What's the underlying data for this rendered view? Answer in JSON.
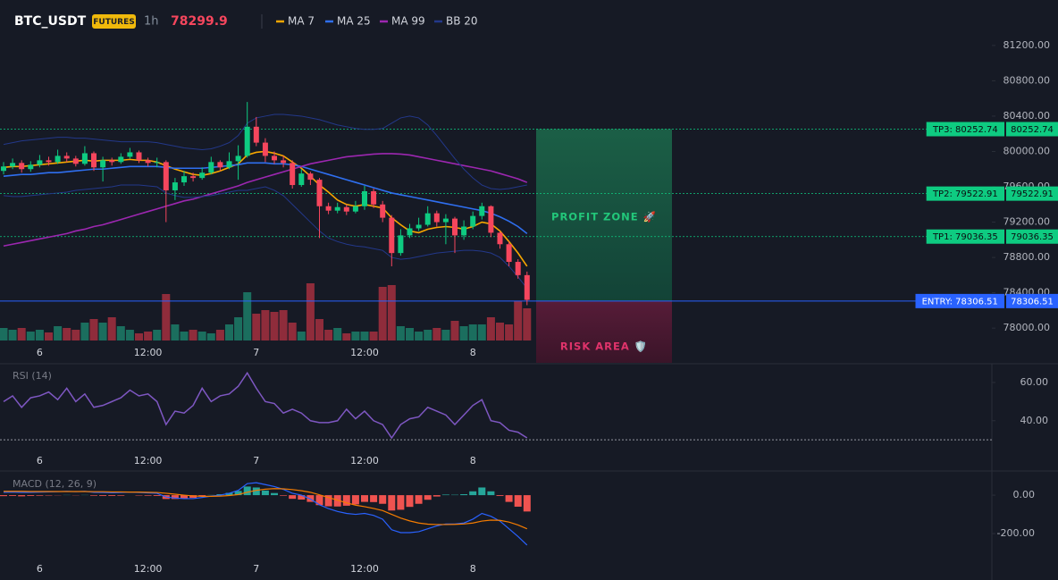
{
  "header": {
    "symbol": "BTC_USDT",
    "badge": "FUTURES",
    "interval": "1h",
    "last_price": 78299.9
  },
  "chart_data": [
    {
      "type": "candlestick",
      "categories": [
        null,
        null,
        null,
        null,
        "6",
        null,
        null,
        null,
        null,
        null,
        null,
        null,
        null,
        null,
        null,
        null,
        "12:00",
        null,
        null,
        null,
        null,
        null,
        null,
        null,
        null,
        null,
        null,
        null,
        "7",
        null,
        null,
        null,
        null,
        null,
        null,
        null,
        null,
        null,
        null,
        null,
        "12:00",
        null,
        null,
        null,
        null,
        null,
        null,
        null,
        null,
        null,
        null,
        null,
        "8",
        null,
        null,
        null,
        null,
        null,
        null
      ],
      "open": [
        79780,
        79830,
        79870,
        79800,
        79850,
        79900,
        79880,
        79950,
        79920,
        79860,
        79980,
        79820,
        79900,
        79880,
        79940,
        79990,
        79900,
        79870,
        79880,
        79560,
        79650,
        79720,
        79700,
        79760,
        79880,
        79820,
        79890,
        79950,
        80280,
        80100,
        79950,
        79900,
        79870,
        79620,
        79750,
        79680,
        79380,
        79330,
        79370,
        79320,
        79380,
        79550,
        79400,
        79250,
        78850,
        79050,
        79130,
        79170,
        79300,
        79200,
        79240,
        79050,
        79150,
        79270,
        79380,
        79080,
        78950,
        78750,
        78600
      ],
      "high": [
        79880,
        79920,
        79900,
        79890,
        79960,
        79940,
        80020,
        79990,
        79950,
        80060,
        80000,
        79940,
        79930,
        79980,
        80040,
        80010,
        79930,
        79930,
        79900,
        79700,
        79780,
        79760,
        79820,
        79940,
        79900,
        79990,
        80070,
        80560,
        80390,
        80150,
        80000,
        79950,
        79900,
        79800,
        79770,
        79700,
        79420,
        79420,
        79400,
        79440,
        79610,
        79580,
        79440,
        79280,
        79120,
        79180,
        79250,
        79380,
        79330,
        79290,
        79260,
        79220,
        79320,
        79420,
        79390,
        79100,
        78980,
        78780,
        78640
      ],
      "low": [
        79740,
        79800,
        79760,
        79770,
        79820,
        79840,
        79860,
        79880,
        79830,
        79840,
        79780,
        79660,
        79840,
        79860,
        79920,
        79870,
        79830,
        79820,
        79200,
        79450,
        79610,
        79660,
        79680,
        79740,
        79780,
        79800,
        79680,
        79930,
        80060,
        79880,
        79860,
        79820,
        79580,
        79600,
        79620,
        79020,
        79290,
        79300,
        79280,
        79300,
        79340,
        79360,
        79200,
        78700,
        78820,
        79020,
        79100,
        79150,
        79150,
        78950,
        78850,
        79000,
        79120,
        79230,
        79030,
        78900,
        78700,
        78560,
        78260
      ],
      "close": [
        79830,
        79870,
        79800,
        79850,
        79900,
        79880,
        79950,
        79920,
        79860,
        79980,
        79820,
        79900,
        79880,
        79940,
        79990,
        79900,
        79870,
        79880,
        79560,
        79650,
        79720,
        79700,
        79760,
        79880,
        79820,
        79890,
        79950,
        80280,
        80100,
        79950,
        79900,
        79870,
        79620,
        79750,
        79680,
        79380,
        79330,
        79370,
        79320,
        79380,
        79550,
        79400,
        79250,
        78850,
        79050,
        79130,
        79170,
        79300,
        79200,
        79240,
        79050,
        79150,
        79270,
        79380,
        79080,
        78950,
        78750,
        78600,
        78320
      ],
      "volume": [
        14,
        12,
        14,
        10,
        12,
        9,
        16,
        14,
        12,
        20,
        24,
        20,
        26,
        16,
        12,
        8,
        10,
        12,
        52,
        18,
        10,
        12,
        10,
        8,
        12,
        18,
        26,
        54,
        30,
        34,
        32,
        34,
        20,
        10,
        64,
        24,
        12,
        14,
        8,
        10,
        10,
        10,
        60,
        62,
        16,
        14,
        10,
        12,
        14,
        12,
        22,
        16,
        18,
        18,
        26,
        20,
        18,
        44,
        36
      ],
      "up_color": "#0ecb81",
      "down_color": "#f6465d",
      "volume_up_color": "#1b6e5e",
      "volume_down_color": "#8f2c3b",
      "series": [
        {
          "name": "MA 7",
          "color": "#f7a600",
          "values": [
            79820,
            79830,
            79830,
            79840,
            79850,
            79860,
            79870,
            79880,
            79890,
            79900,
            79890,
            79900,
            79900,
            79900,
            79910,
            79900,
            79900,
            79880,
            79840,
            79800,
            79770,
            79740,
            79730,
            79750,
            79780,
            79820,
            79860,
            79960,
            79990,
            80000,
            79980,
            79950,
            79880,
            79810,
            79720,
            79620,
            79540,
            79450,
            79400,
            79380,
            79400,
            79380,
            79360,
            79250,
            79170,
            79100,
            79080,
            79120,
            79140,
            79150,
            79140,
            79120,
            79150,
            79200,
            79180,
            79100,
            78980,
            78850,
            78700
          ]
        },
        {
          "name": "MA 25",
          "color": "#2f6ff0",
          "values": [
            79720,
            79730,
            79740,
            79740,
            79750,
            79760,
            79760,
            79770,
            79780,
            79790,
            79800,
            79800,
            79810,
            79820,
            79830,
            79830,
            79830,
            79830,
            79820,
            79810,
            79810,
            79810,
            79810,
            79820,
            79830,
            79840,
            79850,
            79870,
            79870,
            79870,
            79860,
            79860,
            79850,
            79830,
            79800,
            79770,
            79740,
            79710,
            79680,
            79650,
            79620,
            79590,
            79560,
            79530,
            79510,
            79490,
            79470,
            79450,
            79430,
            79410,
            79390,
            79370,
            79350,
            79330,
            79300,
            79260,
            79210,
            79150,
            79070
          ]
        },
        {
          "name": "MA 99",
          "color": "#9c27b0",
          "values": [
            78930,
            78950,
            78970,
            78990,
            79010,
            79030,
            79050,
            79070,
            79100,
            79120,
            79150,
            79170,
            79200,
            79230,
            79260,
            79290,
            79320,
            79350,
            79380,
            79410,
            79440,
            79460,
            79490,
            79520,
            79550,
            79580,
            79610,
            79650,
            79680,
            79710,
            79740,
            79770,
            79800,
            79830,
            79860,
            79880,
            79900,
            79920,
            79940,
            79950,
            79960,
            79970,
            79975,
            79975,
            79970,
            79960,
            79940,
            79920,
            79900,
            79880,
            79860,
            79840,
            79820,
            79800,
            79780,
            79750,
            79720,
            79690,
            79650
          ]
        },
        {
          "name": "BB 20",
          "color": "#23388a",
          "upper": [
            80080,
            80100,
            80120,
            80130,
            80140,
            80150,
            80160,
            80160,
            80150,
            80150,
            80140,
            80130,
            80120,
            80110,
            80110,
            80110,
            80110,
            80100,
            80080,
            80060,
            80040,
            80030,
            80020,
            80030,
            80060,
            80100,
            80180,
            80320,
            80380,
            80400,
            80420,
            80420,
            80410,
            80400,
            80380,
            80360,
            80330,
            80300,
            80280,
            80260,
            80250,
            80250,
            80260,
            80320,
            80380,
            80400,
            80380,
            80300,
            80180,
            80050,
            79920,
            79800,
            79700,
            79620,
            79580,
            79570,
            79580,
            79600,
            79620
          ],
          "lower": [
            79500,
            79490,
            79490,
            79500,
            79510,
            79520,
            79530,
            79540,
            79560,
            79570,
            79580,
            79590,
            79600,
            79620,
            79620,
            79620,
            79610,
            79600,
            79530,
            79500,
            79480,
            79480,
            79490,
            79500,
            79520,
            79540,
            79560,
            79560,
            79580,
            79600,
            79560,
            79500,
            79400,
            79300,
            79200,
            79100,
            79020,
            78980,
            78950,
            78930,
            78920,
            78900,
            78880,
            78800,
            78780,
            78790,
            78810,
            78830,
            78850,
            78860,
            78870,
            78880,
            78880,
            78870,
            78850,
            78800,
            78700,
            78580,
            78450
          ]
        }
      ],
      "ylim": [
        77860,
        81310
      ],
      "yticks": [
        {
          "value": 81200,
          "label": "81200.00"
        },
        {
          "value": 80800,
          "label": "80800.00"
        },
        {
          "value": 80400,
          "label": "80400.00"
        },
        {
          "value": 80000,
          "label": "80000.00"
        },
        {
          "value": 79600,
          "label": "79600.00"
        },
        {
          "value": 79200,
          "label": "79200.00"
        },
        {
          "value": 78800,
          "label": "78800.00"
        },
        {
          "value": 78400,
          "label": "78400.00"
        },
        {
          "value": 78000,
          "label": "78000.00"
        }
      ],
      "levels": [
        {
          "label": "TP3: 80252.74",
          "value": 80252.74,
          "color": "#0ecb81"
        },
        {
          "label": "TP2: 79522.91",
          "value": 79522.91,
          "color": "#0ecb81"
        },
        {
          "label": "TP1: 79036.35",
          "value": 79036.35,
          "color": "#0ecb81"
        },
        {
          "label": "ENTRY: 78306.51",
          "value": 78306.51,
          "color": "#2962ff"
        }
      ],
      "profit_zone": "PROFIT ZONE 🚀",
      "risk_zone": "RISK AREA 🛡️"
    },
    {
      "type": "line",
      "title": "RSI (14)",
      "color": "#7e57c2",
      "categories": [
        null,
        null,
        null,
        null,
        "6",
        null,
        null,
        null,
        null,
        null,
        null,
        null,
        null,
        null,
        null,
        null,
        "12:00",
        null,
        null,
        null,
        null,
        null,
        null,
        null,
        null,
        null,
        null,
        null,
        "7",
        null,
        null,
        null,
        null,
        null,
        null,
        null,
        null,
        null,
        null,
        null,
        "12:00",
        null,
        null,
        null,
        null,
        null,
        null,
        null,
        null,
        null,
        null,
        null,
        "8",
        null,
        null,
        null,
        null,
        null,
        null
      ],
      "values": [
        50,
        53,
        47,
        52,
        53,
        55,
        51,
        57,
        50,
        54,
        47,
        48,
        50,
        52,
        56,
        53,
        54,
        50,
        38,
        45,
        44,
        48,
        57,
        50,
        53,
        54,
        58,
        65,
        57,
        50,
        49,
        44,
        46,
        44,
        40,
        39,
        39,
        40,
        46,
        41,
        45,
        40,
        38,
        31,
        38,
        41,
        42,
        47,
        45,
        43,
        38,
        43,
        48,
        51,
        40,
        39,
        35,
        34,
        31
      ],
      "reference_line": 30,
      "ylim": [
        24,
        67
      ],
      "yticks": [
        {
          "value": 60,
          "label": "60.00"
        },
        {
          "value": 40,
          "label": "40.00"
        }
      ]
    },
    {
      "type": "macd",
      "title": "MACD (12, 26, 9)",
      "categories": [
        null,
        null,
        null,
        null,
        "6",
        null,
        null,
        null,
        null,
        null,
        null,
        null,
        null,
        null,
        null,
        null,
        "12:00",
        null,
        null,
        null,
        null,
        null,
        null,
        null,
        null,
        null,
        null,
        null,
        "7",
        null,
        null,
        null,
        null,
        null,
        null,
        null,
        null,
        null,
        null,
        null,
        "12:00",
        null,
        null,
        null,
        null,
        null,
        null,
        null,
        null,
        null,
        null,
        null,
        "8",
        null,
        null,
        null,
        null,
        null,
        null
      ],
      "macd": [
        15,
        16,
        14,
        15,
        16,
        17,
        18,
        20,
        18,
        20,
        15,
        14,
        13,
        14,
        16,
        14,
        12,
        10,
        -10,
        -15,
        -18,
        -18,
        -12,
        -5,
        0,
        10,
        25,
        60,
        65,
        55,
        45,
        30,
        10,
        0,
        -20,
        -50,
        -70,
        -85,
        -95,
        -100,
        -95,
        -105,
        -125,
        -180,
        -195,
        -195,
        -190,
        -175,
        -160,
        -150,
        -150,
        -145,
        -125,
        -95,
        -110,
        -135,
        -175,
        -215,
        -260
      ],
      "signal": [
        20,
        20,
        20,
        19,
        19,
        19,
        19,
        19,
        19,
        19,
        18,
        18,
        17,
        17,
        16,
        16,
        15,
        14,
        10,
        5,
        0,
        -4,
        -6,
        -6,
        -5,
        -2,
        3,
        15,
        25,
        31,
        34,
        33,
        29,
        23,
        15,
        2,
        -12,
        -26,
        -40,
        -52,
        -60,
        -69,
        -80,
        -100,
        -119,
        -134,
        -145,
        -151,
        -153,
        -153,
        -152,
        -150,
        -145,
        -135,
        -130,
        -131,
        -140,
        -155,
        -175
      ],
      "histogram": [
        -5,
        -4,
        -6,
        -4,
        -3,
        -2,
        -1,
        1,
        -1,
        1,
        -3,
        -4,
        -4,
        -3,
        0,
        -2,
        -3,
        -4,
        -20,
        -20,
        -18,
        -14,
        -6,
        1,
        5,
        12,
        22,
        45,
        40,
        24,
        11,
        -3,
        -19,
        -23,
        -35,
        -52,
        -58,
        -59,
        -55,
        -48,
        -35,
        -36,
        -45,
        -80,
        -76,
        -61,
        -45,
        -24,
        -7,
        3,
        2,
        5,
        20,
        40,
        20,
        -4,
        -35,
        -60,
        -85
      ],
      "macd_color": "#2962ff",
      "signal_color": "#f57c00",
      "up_color": "#26a69a",
      "down_color": "#ef5350",
      "ylim": [
        -330,
        112
      ],
      "yticks": [
        {
          "value": 0,
          "label": "0.00"
        },
        {
          "value": -200,
          "label": "-200.00"
        }
      ]
    }
  ]
}
